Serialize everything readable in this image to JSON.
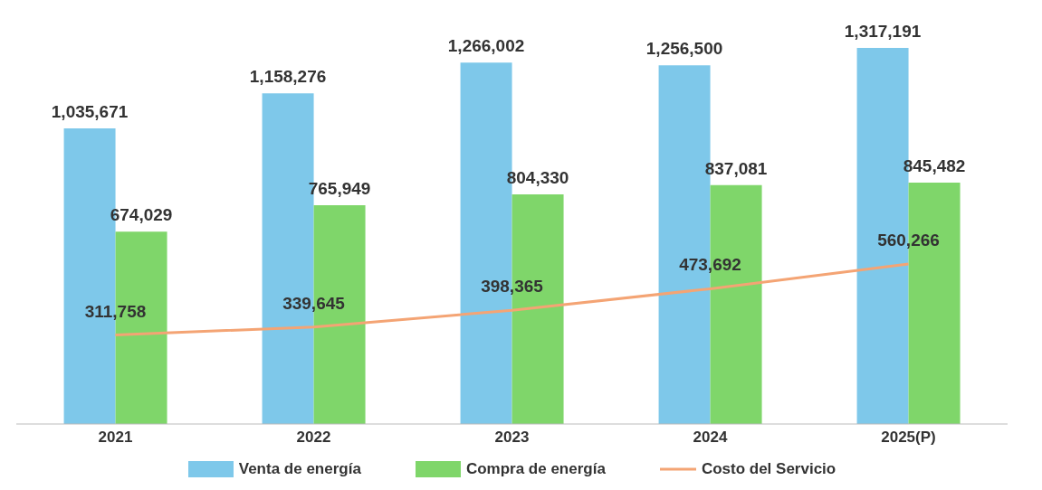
{
  "chart_data": {
    "type": "bar",
    "categories": [
      "2021",
      "2022",
      "2023",
      "2024",
      "2025(P)"
    ],
    "series": [
      {
        "name": "Venta de energía",
        "color": "#7ec8ea",
        "values": [
          1035671,
          1158276,
          1266002,
          1256500,
          1317191
        ],
        "value_labels": [
          "1,035,671",
          "1,158,276",
          "1,266,002",
          "1,256,500",
          "1,317,191"
        ]
      },
      {
        "name": "Compra de energía",
        "color": "#7fd66a",
        "values": [
          674029,
          765949,
          804330,
          837081,
          845482
        ],
        "value_labels": [
          "674,029",
          "765,949",
          "804,330",
          "837,081",
          "845,482"
        ]
      },
      {
        "name": "Costo del Servicio",
        "type": "line",
        "color": "#f4a474",
        "values": [
          311758,
          339645,
          398365,
          473692,
          560266
        ],
        "value_labels": [
          "311,758",
          "339,645",
          "398,365",
          "473,692",
          "560,266"
        ]
      }
    ],
    "legend": "bottom",
    "tick_labels": "x"
  }
}
